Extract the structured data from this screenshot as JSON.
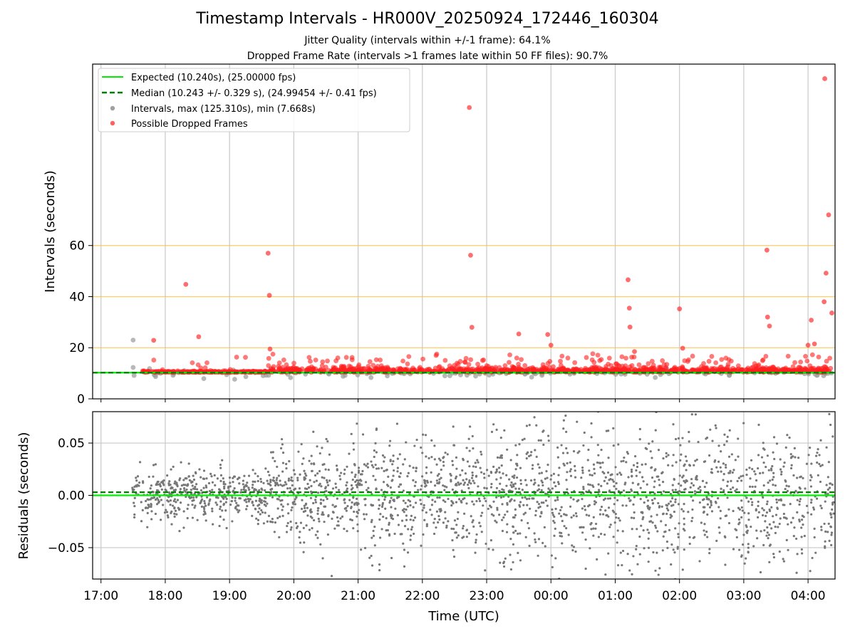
{
  "chart_data": [
    {
      "type": "scatter",
      "title": "Timestamp Intervals - HR000V_20250924_172446_160304",
      "subtitle_lines": [
        "Jitter Quality (intervals within +/-1 frame): 64.1%",
        "Dropped Frame Rate (intervals >1 frames late within 50 FF files): 90.7%"
      ],
      "ylabel": "Intervals (seconds)",
      "ylim": [
        0,
        131
      ],
      "y_ticks": [
        0,
        20,
        40,
        60
      ],
      "y_tick_labels": [
        "0",
        "20",
        "40",
        "60"
      ],
      "threshold_lines": [
        20,
        40,
        60
      ],
      "threshold_color": "#ffbf40",
      "legend_location": "upper left",
      "legend": [
        {
          "label": "Expected (10.240s), (25.00000 fps)",
          "style": "line",
          "color": "#00ee00"
        },
        {
          "label": "Median (10.243 +/- 0.329 s), (24.99454 +/- 0.41 fps)",
          "style": "dashed",
          "color": "#008000"
        },
        {
          "label": "Intervals, max (125.310s), min (7.668s)",
          "style": "dot",
          "color": "#a0a0a0"
        },
        {
          "label": "Possible Dropped Frames",
          "style": "dot",
          "color": "#ff6060"
        }
      ],
      "expected_interval": 10.24,
      "median_interval": 10.243,
      "series": [
        {
          "name": "Possible Dropped Frames",
          "note": "notable outliers read from the plot; dense band near 10-15 s spans 17:37-04:25",
          "x_hours": [
            17.82,
            18.32,
            18.52,
            19.6,
            19.62,
            19.63,
            22.73,
            22.75,
            22.77,
            23.5,
            23.95,
            24.0,
            25.2,
            25.22,
            25.23,
            25.3,
            26.0,
            26.05,
            27.36,
            27.37,
            27.4,
            28.0,
            28.05,
            28.1,
            28.25,
            28.26,
            28.28,
            28.32,
            28.37
          ],
          "y": [
            22.9,
            44.8,
            24.3,
            57.0,
            40.5,
            19.5,
            114.0,
            56.2,
            28.0,
            25.4,
            25.2,
            21.0,
            46.6,
            35.5,
            28.1,
            18.5,
            35.2,
            19.8,
            58.2,
            32.0,
            28.5,
            21.0,
            30.8,
            21.5,
            38.0,
            125.3,
            49.2,
            72.0,
            33.6
          ]
        },
        {
          "name": "Intervals, max (125.310s), min (7.668s)",
          "x_range_hours": [
            17.47,
            28.4
          ],
          "band_center": 10.24,
          "note": "grey points mostly hidden behind red band; min 7.668 s"
        }
      ]
    },
    {
      "type": "scatter",
      "ylabel": "Residuals (seconds)",
      "xlabel": "Time (UTC)",
      "ylim": [
        -0.08,
        0.08
      ],
      "y_ticks": [
        0.05,
        0.0,
        -0.05
      ],
      "y_tick_labels": [
        "0.05",
        "0.00",
        "−0.05"
      ],
      "x_range_hours": [
        16.87,
        28.42
      ],
      "x_tick_hours": [
        17,
        18,
        19,
        20,
        21,
        22,
        23,
        24,
        25,
        26,
        27,
        28
      ],
      "x_tick_labels": [
        "17:00",
        "18:00",
        "19:00",
        "20:00",
        "21:00",
        "22:00",
        "23:00",
        "00:00",
        "01:00",
        "02:00",
        "03:00",
        "04:00"
      ],
      "expected_residual": 0.0,
      "median_residual": 0.003,
      "series": [
        {
          "name": "residuals",
          "color": "#777777",
          "x_range_hours": [
            17.47,
            28.4
          ],
          "spread_profile": [
            {
              "from": 17.47,
              "to": 19.6,
              "std": 0.012
            },
            {
              "from": 19.6,
              "to": 21.0,
              "std": 0.022
            },
            {
              "from": 21.0,
              "to": 22.9,
              "std": 0.026
            },
            {
              "from": 22.9,
              "to": 28.4,
              "std": 0.032
            }
          ]
        }
      ]
    }
  ]
}
